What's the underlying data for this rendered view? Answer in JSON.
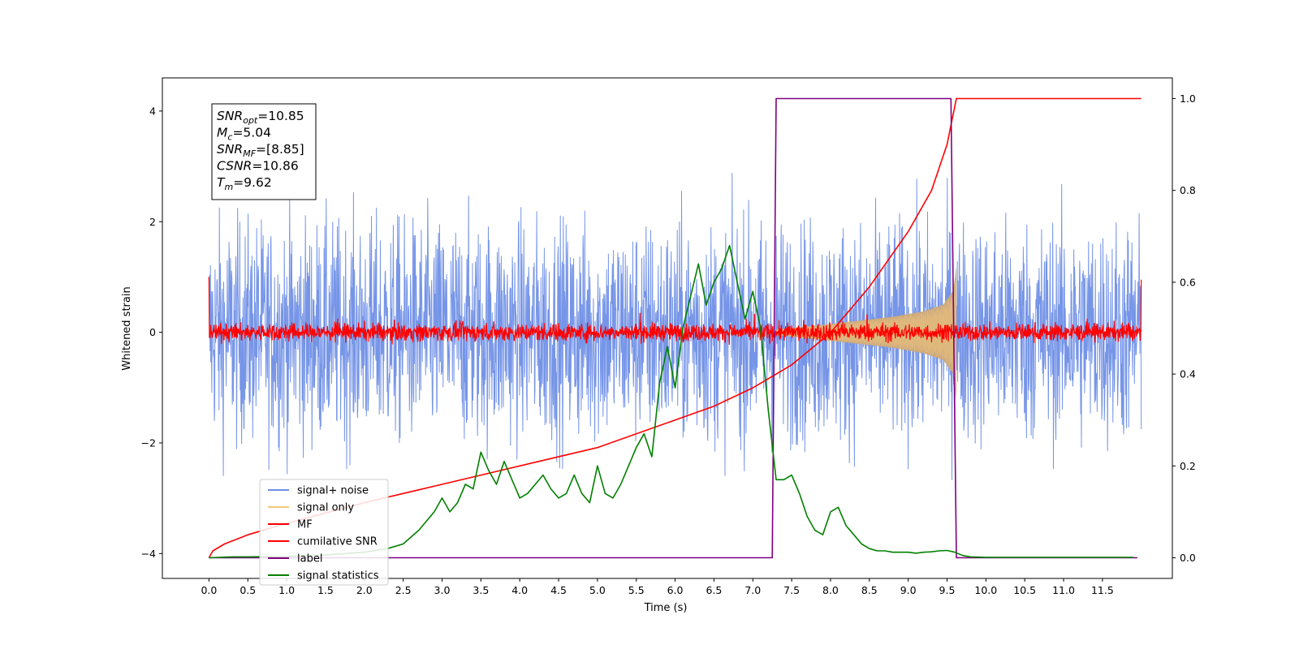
{
  "chart_data": {
    "type": "line",
    "title": "",
    "xlabel": "Time (s)",
    "ylabel": "Whitened strain",
    "xlim": [
      -0.6,
      12.4
    ],
    "ylim": [
      -4.45,
      4.6
    ],
    "y2lim": [
      -0.045,
      1.045
    ],
    "grid": false,
    "legend_position": "lower-left",
    "x_ticks": [
      0.0,
      0.5,
      1.0,
      1.5,
      2.0,
      2.5,
      3.0,
      3.5,
      4.0,
      4.5,
      5.0,
      5.5,
      6.0,
      6.5,
      7.0,
      7.5,
      8.0,
      8.5,
      9.0,
      9.5,
      10.0,
      10.5,
      11.0,
      11.5
    ],
    "x_tick_labels": [
      "0.0",
      "0.5",
      "1.0",
      "1.5",
      "2.0",
      "2.5",
      "3.0",
      "3.5",
      "4.0",
      "4.5",
      "5.0",
      "5.5",
      "6.0",
      "6.5",
      "7.0",
      "7.5",
      "8.0",
      "8.5",
      "9.0",
      "9.5",
      "10.0",
      "10.5",
      "11.0",
      "11.5"
    ],
    "y_ticks": [
      -4,
      -2,
      0,
      2,
      4
    ],
    "y_tick_labels": [
      "−4",
      "−2",
      "0",
      "2",
      "4"
    ],
    "y2_ticks": [
      0.0,
      0.2,
      0.4,
      0.6,
      0.8,
      1.0
    ],
    "y2_tick_labels": [
      "0.0",
      "0.2",
      "0.4",
      "0.6",
      "0.8",
      "1.0"
    ],
    "annotation": {
      "lines": [
        {
          "base": "SNR",
          "sub": "opt",
          "rest": "=10.85"
        },
        {
          "base": "M",
          "sub": "c",
          "rest": "=5.04"
        },
        {
          "base": "SNR",
          "sub": "MF",
          "rest": "=[8.85]"
        },
        {
          "base": "CSNR",
          "sub": "",
          "rest": "=10.86"
        },
        {
          "base": "T",
          "sub": "m",
          "rest": "=9.62"
        }
      ]
    },
    "series": [
      {
        "name": "signal+ noise",
        "color": "#6f8fe6",
        "axis": "left",
        "kind": "noise",
        "x_range": [
          0.0,
          12.0
        ],
        "y_amplitude": 1.0,
        "y_peak_range": [
          -4.1,
          4.15
        ]
      },
      {
        "name": "signal only",
        "color": "#f5c97a",
        "fill_color": "#c4a27a",
        "axis": "left",
        "kind": "chirp",
        "x_range": [
          7.3,
          9.62
        ],
        "envelope": [
          [
            7.3,
            0.05
          ],
          [
            7.8,
            0.12
          ],
          [
            8.3,
            0.2
          ],
          [
            8.8,
            0.28
          ],
          [
            9.2,
            0.38
          ],
          [
            9.45,
            0.5
          ],
          [
            9.58,
            0.75
          ],
          [
            9.62,
            1.2
          ]
        ]
      },
      {
        "name": "MF",
        "color": "#ff0000",
        "axis": "left",
        "kind": "noise",
        "x_range": [
          0.0,
          12.0
        ],
        "y_amplitude": 0.08,
        "start_value": 1.0,
        "end_value": 0.95
      },
      {
        "name": "cumilative SNR",
        "color": "#ff0000",
        "axis": "right",
        "kind": "line",
        "x": [
          0.0,
          0.05,
          0.2,
          0.5,
          1.0,
          2.0,
          3.0,
          4.0,
          5.0,
          6.0,
          6.5,
          7.0,
          7.5,
          8.0,
          8.5,
          9.0,
          9.3,
          9.5,
          9.62,
          12.0
        ],
        "y": [
          0.0,
          0.015,
          0.03,
          0.05,
          0.075,
          0.12,
          0.16,
          0.2,
          0.24,
          0.3,
          0.33,
          0.37,
          0.42,
          0.49,
          0.59,
          0.71,
          0.8,
          0.9,
          1.0,
          1.0
        ]
      },
      {
        "name": "label",
        "color": "#800080",
        "axis": "right",
        "kind": "line",
        "x": [
          0.0,
          7.25,
          7.3,
          9.55,
          9.62,
          11.95
        ],
        "y": [
          0.0,
          0.0,
          1.0,
          1.0,
          0.0,
          0.0
        ]
      },
      {
        "name": "signal statistics",
        "color": "#008000",
        "axis": "right",
        "kind": "line",
        "x": [
          0.0,
          0.3,
          0.5,
          1.0,
          1.5,
          2.0,
          2.3,
          2.5,
          2.7,
          2.9,
          3.0,
          3.1,
          3.2,
          3.3,
          3.4,
          3.5,
          3.6,
          3.7,
          3.8,
          3.9,
          4.0,
          4.1,
          4.2,
          4.3,
          4.4,
          4.5,
          4.6,
          4.7,
          4.8,
          4.9,
          5.0,
          5.1,
          5.2,
          5.3,
          5.4,
          5.5,
          5.6,
          5.7,
          5.8,
          5.9,
          6.0,
          6.1,
          6.2,
          6.3,
          6.4,
          6.5,
          6.6,
          6.7,
          6.8,
          6.9,
          7.0,
          7.1,
          7.2,
          7.3,
          7.4,
          7.5,
          7.6,
          7.7,
          7.8,
          7.9,
          8.0,
          8.1,
          8.2,
          8.3,
          8.4,
          8.5,
          8.6,
          8.7,
          8.8,
          8.9,
          9.0,
          9.1,
          9.2,
          9.3,
          9.4,
          9.5,
          9.6,
          9.7,
          9.8,
          10.0,
          10.5,
          11.0,
          11.5,
          11.9
        ],
        "y": [
          0.0,
          0.002,
          0.002,
          0.003,
          0.006,
          0.012,
          0.02,
          0.03,
          0.06,
          0.1,
          0.13,
          0.1,
          0.12,
          0.16,
          0.15,
          0.23,
          0.19,
          0.16,
          0.21,
          0.17,
          0.13,
          0.14,
          0.16,
          0.18,
          0.15,
          0.13,
          0.14,
          0.18,
          0.14,
          0.12,
          0.2,
          0.14,
          0.13,
          0.16,
          0.2,
          0.24,
          0.27,
          0.22,
          0.38,
          0.46,
          0.37,
          0.5,
          0.57,
          0.64,
          0.55,
          0.6,
          0.63,
          0.68,
          0.6,
          0.52,
          0.58,
          0.5,
          0.32,
          0.17,
          0.17,
          0.18,
          0.14,
          0.09,
          0.06,
          0.05,
          0.1,
          0.11,
          0.07,
          0.05,
          0.03,
          0.02,
          0.015,
          0.015,
          0.012,
          0.012,
          0.012,
          0.01,
          0.012,
          0.013,
          0.015,
          0.016,
          0.012,
          0.005,
          0.002,
          0.001,
          0.001,
          0.001,
          0.001,
          0.001
        ]
      }
    ]
  }
}
